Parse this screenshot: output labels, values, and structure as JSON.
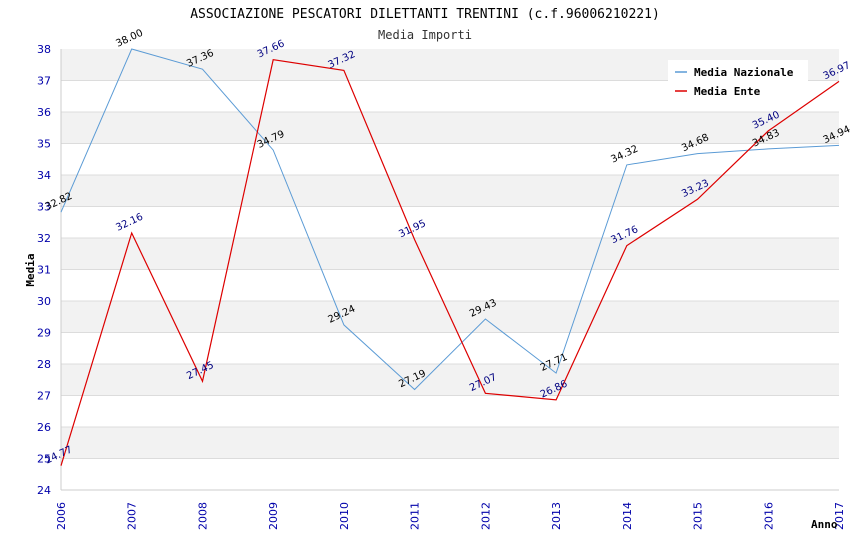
{
  "chart_data": {
    "type": "line",
    "title": "ASSOCIAZIONE PESCATORI DILETTANTI TRENTINI (c.f.96006210221)",
    "subtitle": "Media Importi",
    "xlabel": "Anno",
    "ylabel": "Media",
    "x": [
      "2006",
      "2007",
      "2008",
      "2009",
      "2010",
      "2011",
      "2012",
      "2013",
      "2014",
      "2015",
      "2016",
      "2017"
    ],
    "ylim": [
      24,
      38
    ],
    "yticks": [
      "24",
      "25",
      "26",
      "27",
      "28",
      "29",
      "30",
      "31",
      "32",
      "33",
      "34",
      "35",
      "36",
      "37",
      "38"
    ],
    "legend_position": "top-right",
    "grid": "horizontal-bands",
    "series": [
      {
        "name": "Media Nazionale",
        "color": "#5b9bd5",
        "label_color": "#000000",
        "values": [
          32.82,
          38.0,
          37.36,
          34.79,
          29.24,
          27.19,
          29.43,
          27.71,
          34.32,
          34.68,
          34.83,
          34.94
        ],
        "labels": [
          "32.82",
          "38.00",
          "37.36",
          "34.79",
          "29.24",
          "27.19",
          "29.43",
          "27.71",
          "34.32",
          "34.68",
          "34.83",
          "34.94"
        ]
      },
      {
        "name": "Media Ente",
        "color": "#dd0000",
        "label_color": "#000080",
        "values": [
          24.77,
          32.16,
          27.45,
          37.66,
          37.32,
          31.95,
          27.07,
          26.86,
          31.76,
          33.23,
          35.4,
          36.97
        ],
        "labels": [
          "24.77",
          "32.16",
          "27.45",
          "37.66",
          "37.32",
          "31.95",
          "27.07",
          "26.86",
          "31.76",
          "33.23",
          "35.40",
          "36.97"
        ]
      }
    ]
  }
}
